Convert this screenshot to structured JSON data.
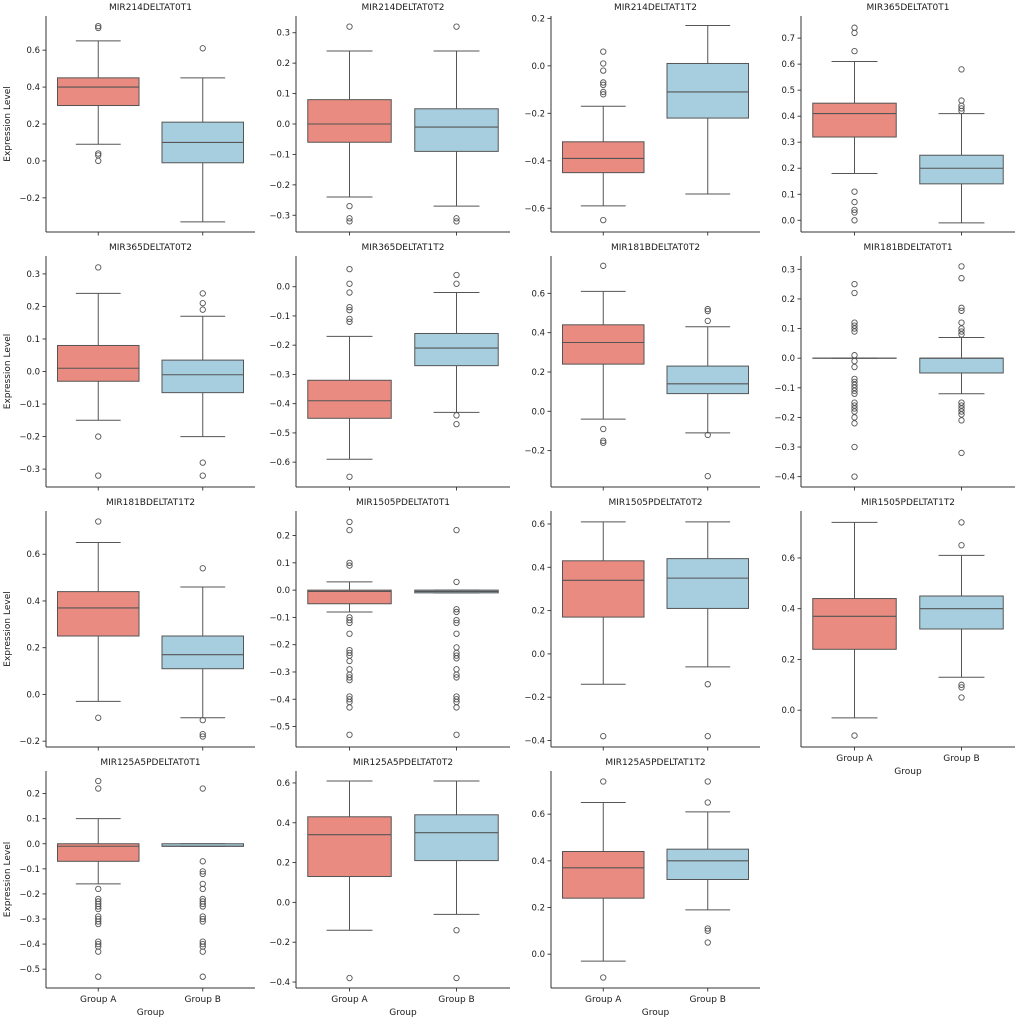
{
  "chart_data": {
    "type": "boxplot",
    "categories": [
      "Group A",
      "Group B"
    ],
    "ylabel": "Expression Level",
    "xlabel": "Group",
    "colors": {
      "group_a_fill": "#E98B80",
      "group_b_fill": "#A7CEDF",
      "box_line": "#555555",
      "spine": "#333333",
      "text": "#1A1A1A",
      "background": "#FFFFFF"
    },
    "plots": [
      {
        "title": "MIR214DELTAT0T1",
        "ylim": [
          -0.385,
          0.785
        ],
        "yticks": [
          -0.2,
          0.0,
          0.2,
          0.4,
          0.6
        ],
        "show_ylabel": true,
        "show_xticklabels": false,
        "boxes": [
          {
            "whislo": 0.09,
            "q1": 0.3,
            "med": 0.4,
            "q3": 0.45,
            "whishi": 0.65,
            "outliers": [
              0.73,
              0.72,
              0.04,
              0.03,
              0.0
            ]
          },
          {
            "whislo": -0.33,
            "q1": -0.01,
            "med": 0.1,
            "q3": 0.21,
            "whishi": 0.45,
            "outliers": [
              0.61
            ]
          }
        ]
      },
      {
        "title": "MIR214DELTAT0T2",
        "ylim": [
          -0.355,
          0.355
        ],
        "yticks": [
          -0.3,
          -0.2,
          -0.1,
          0.0,
          0.1,
          0.2,
          0.3
        ],
        "show_ylabel": false,
        "show_xticklabels": false,
        "boxes": [
          {
            "whislo": -0.24,
            "q1": -0.06,
            "med": 0.0,
            "q3": 0.08,
            "whishi": 0.24,
            "outliers": [
              0.32,
              -0.27,
              -0.31,
              -0.32
            ]
          },
          {
            "whislo": -0.27,
            "q1": -0.09,
            "med": -0.01,
            "q3": 0.05,
            "whishi": 0.24,
            "outliers": [
              0.32,
              -0.31,
              -0.32
            ]
          }
        ]
      },
      {
        "title": "MIR214DELTAT1T2",
        "ylim": [
          -0.7,
          0.21
        ],
        "yticks": [
          -0.6,
          -0.4,
          -0.2,
          0.0,
          0.2
        ],
        "show_ylabel": false,
        "show_xticklabels": false,
        "boxes": [
          {
            "whislo": -0.59,
            "q1": -0.45,
            "med": -0.39,
            "q3": -0.32,
            "whishi": -0.17,
            "outliers": [
              0.06,
              0.01,
              -0.02,
              -0.07,
              -0.08,
              -0.11,
              -0.12,
              -0.65
            ]
          },
          {
            "whislo": -0.54,
            "q1": -0.22,
            "med": -0.11,
            "q3": 0.01,
            "whishi": 0.17,
            "outliers": []
          }
        ]
      },
      {
        "title": "MIR365DELTAT0T1",
        "ylim": [
          -0.045,
          0.785
        ],
        "yticks": [
          0.0,
          0.1,
          0.2,
          0.3,
          0.4,
          0.5,
          0.6,
          0.7
        ],
        "show_ylabel": false,
        "show_xticklabels": false,
        "boxes": [
          {
            "whislo": 0.18,
            "q1": 0.32,
            "med": 0.41,
            "q3": 0.45,
            "whishi": 0.61,
            "outliers": [
              0.74,
              0.72,
              0.65,
              0.11,
              0.07,
              0.04,
              0.03,
              0.0
            ]
          },
          {
            "whislo": -0.01,
            "q1": 0.14,
            "med": 0.2,
            "q3": 0.25,
            "whishi": 0.41,
            "outliers": [
              0.58,
              0.46,
              0.44,
              0.43,
              0.42
            ]
          }
        ]
      },
      {
        "title": "MIR365DELTAT0T2",
        "ylim": [
          -0.355,
          0.355
        ],
        "yticks": [
          -0.3,
          -0.2,
          -0.1,
          0.0,
          0.1,
          0.2,
          0.3
        ],
        "show_ylabel": true,
        "show_xticklabels": false,
        "boxes": [
          {
            "whislo": -0.15,
            "q1": -0.03,
            "med": 0.01,
            "q3": 0.08,
            "whishi": 0.24,
            "outliers": [
              0.32,
              -0.2,
              -0.32
            ]
          },
          {
            "whislo": -0.2,
            "q1": -0.065,
            "med": -0.01,
            "q3": 0.035,
            "whishi": 0.17,
            "outliers": [
              0.24,
              0.21,
              0.19,
              -0.28,
              -0.32
            ]
          }
        ]
      },
      {
        "title": "MIR365DELTAT1T2",
        "ylim": [
          -0.685,
          0.105
        ],
        "yticks": [
          -0.6,
          -0.5,
          -0.4,
          -0.3,
          -0.2,
          -0.1,
          0.0
        ],
        "show_ylabel": false,
        "show_xticklabels": false,
        "boxes": [
          {
            "whislo": -0.59,
            "q1": -0.45,
            "med": -0.39,
            "q3": -0.32,
            "whishi": -0.17,
            "outliers": [
              0.06,
              0.01,
              -0.02,
              -0.07,
              -0.08,
              -0.11,
              -0.12,
              -0.65
            ]
          },
          {
            "whislo": -0.43,
            "q1": -0.27,
            "med": -0.21,
            "q3": -0.16,
            "whishi": -0.02,
            "outliers": [
              0.04,
              0.01,
              -0.44,
              -0.47
            ]
          }
        ]
      },
      {
        "title": "MIR181BDELTAT0T2",
        "ylim": [
          -0.385,
          0.79
        ],
        "yticks": [
          -0.2,
          0.0,
          0.2,
          0.4,
          0.6
        ],
        "show_ylabel": false,
        "show_xticklabels": false,
        "boxes": [
          {
            "whislo": -0.04,
            "q1": 0.24,
            "med": 0.35,
            "q3": 0.44,
            "whishi": 0.61,
            "outliers": [
              0.74,
              -0.09,
              -0.15,
              -0.16
            ]
          },
          {
            "whislo": -0.11,
            "q1": 0.09,
            "med": 0.14,
            "q3": 0.23,
            "whishi": 0.43,
            "outliers": [
              0.52,
              0.51,
              0.46,
              -0.12,
              -0.33
            ]
          }
        ]
      },
      {
        "title": "MIR181BDELTAT0T1",
        "ylim": [
          -0.435,
          0.345
        ],
        "yticks": [
          -0.4,
          -0.3,
          -0.2,
          -0.1,
          0.0,
          0.1,
          0.2,
          0.3
        ],
        "show_ylabel": false,
        "show_xticklabels": false,
        "boxes": [
          {
            "whislo": 0.0,
            "q1": 0.0,
            "med": 0.0,
            "q3": 0.0,
            "whishi": 0.0,
            "outliers": [
              0.25,
              0.22,
              0.12,
              0.11,
              0.1,
              0.09,
              0.01,
              -0.01,
              -0.03,
              -0.07,
              -0.08,
              -0.09,
              -0.1,
              -0.11,
              -0.12,
              -0.15,
              -0.16,
              -0.17,
              -0.18,
              -0.2,
              -0.22,
              -0.3,
              -0.4
            ]
          },
          {
            "whislo": -0.12,
            "q1": -0.05,
            "med": 0.0,
            "q3": 0.0,
            "whishi": 0.07,
            "outliers": [
              0.31,
              0.27,
              0.17,
              0.16,
              0.12,
              0.1,
              0.09,
              0.08,
              -0.15,
              -0.16,
              -0.17,
              -0.18,
              -0.19,
              -0.21,
              -0.32
            ]
          }
        ]
      },
      {
        "title": "MIR181BDELTAT1T2",
        "ylim": [
          -0.225,
          0.785
        ],
        "yticks": [
          -0.2,
          0.0,
          0.2,
          0.4,
          0.6
        ],
        "show_ylabel": true,
        "show_xticklabels": false,
        "boxes": [
          {
            "whislo": -0.03,
            "q1": 0.25,
            "med": 0.37,
            "q3": 0.44,
            "whishi": 0.65,
            "outliers": [
              0.74,
              -0.1
            ]
          },
          {
            "whislo": -0.1,
            "q1": 0.11,
            "med": 0.17,
            "q3": 0.25,
            "whishi": 0.46,
            "outliers": [
              0.54,
              -0.11,
              -0.17,
              -0.18
            ]
          }
        ]
      },
      {
        "title": "MIR1505PDELTAT0T1",
        "ylim": [
          -0.575,
          0.29
        ],
        "yticks": [
          -0.5,
          -0.4,
          -0.3,
          -0.2,
          -0.1,
          0.0,
          0.1,
          0.2
        ],
        "show_ylabel": false,
        "show_xticklabels": false,
        "boxes": [
          {
            "whislo": -0.08,
            "q1": -0.05,
            "med": -0.005,
            "q3": 0.0,
            "whishi": 0.03,
            "outliers": [
              0.25,
              0.22,
              0.1,
              0.09,
              -0.1,
              -0.11,
              -0.12,
              -0.16,
              -0.22,
              -0.23,
              -0.24,
              -0.26,
              -0.29,
              -0.31,
              -0.32,
              -0.33,
              -0.39,
              -0.4,
              -0.41,
              -0.43,
              -0.53
            ]
          },
          {
            "whislo": -0.01,
            "q1": -0.01,
            "med": -0.005,
            "q3": 0.0,
            "whishi": 0.0,
            "outliers": [
              0.22,
              0.03,
              -0.07,
              -0.08,
              -0.11,
              -0.12,
              -0.16,
              -0.21,
              -0.23,
              -0.24,
              -0.25,
              -0.29,
              -0.31,
              -0.32,
              -0.39,
              -0.4,
              -0.41,
              -0.43,
              -0.53
            ]
          }
        ]
      },
      {
        "title": "MIR1505PDELTAT0T2",
        "ylim": [
          -0.43,
          0.66
        ],
        "yticks": [
          -0.4,
          -0.2,
          0.0,
          0.2,
          0.4,
          0.6
        ],
        "show_ylabel": false,
        "show_xticklabels": false,
        "boxes": [
          {
            "whislo": -0.14,
            "q1": 0.17,
            "med": 0.34,
            "q3": 0.43,
            "whishi": 0.61,
            "outliers": [
              -0.38
            ]
          },
          {
            "whislo": -0.06,
            "q1": 0.21,
            "med": 0.35,
            "q3": 0.44,
            "whishi": 0.61,
            "outliers": [
              -0.14,
              -0.38
            ]
          }
        ]
      },
      {
        "title": "MIR1505PDELTAT1T2",
        "ylim": [
          -0.145,
          0.785
        ],
        "yticks": [
          0.0,
          0.2,
          0.4,
          0.6
        ],
        "show_ylabel": false,
        "show_xticklabels": true,
        "boxes": [
          {
            "whislo": -0.03,
            "q1": 0.24,
            "med": 0.37,
            "q3": 0.44,
            "whishi": 0.74,
            "outliers": [
              -0.1
            ]
          },
          {
            "whislo": 0.13,
            "q1": 0.32,
            "med": 0.4,
            "q3": 0.45,
            "whishi": 0.61,
            "outliers": [
              0.74,
              0.65,
              0.1,
              0.09,
              0.05
            ]
          }
        ]
      },
      {
        "title": "MIR125A5PDELTAT0T1",
        "ylim": [
          -0.575,
          0.29
        ],
        "yticks": [
          -0.5,
          -0.4,
          -0.3,
          -0.2,
          -0.1,
          0.0,
          0.1,
          0.2
        ],
        "show_ylabel": true,
        "show_xticklabels": true,
        "boxes": [
          {
            "whislo": -0.16,
            "q1": -0.07,
            "med": -0.01,
            "q3": 0.0,
            "whishi": 0.1,
            "outliers": [
              0.25,
              0.22,
              -0.18,
              -0.22,
              -0.23,
              -0.24,
              -0.25,
              -0.26,
              -0.29,
              -0.3,
              -0.31,
              -0.32,
              -0.39,
              -0.4,
              -0.41,
              -0.43,
              -0.53
            ]
          },
          {
            "whislo": -0.01,
            "q1": -0.01,
            "med": -0.01,
            "q3": 0.0,
            "whishi": 0.0,
            "outliers": [
              0.22,
              -0.07,
              -0.11,
              -0.12,
              -0.16,
              -0.18,
              -0.22,
              -0.23,
              -0.24,
              -0.25,
              -0.29,
              -0.3,
              -0.31,
              -0.39,
              -0.4,
              -0.41,
              -0.43,
              -0.53
            ]
          }
        ]
      },
      {
        "title": "MIR125A5PDELTAT0T2",
        "ylim": [
          -0.43,
          0.66
        ],
        "yticks": [
          -0.4,
          -0.2,
          0.0,
          0.2,
          0.4,
          0.6
        ],
        "show_ylabel": false,
        "show_xticklabels": true,
        "boxes": [
          {
            "whislo": -0.14,
            "q1": 0.13,
            "med": 0.34,
            "q3": 0.43,
            "whishi": 0.61,
            "outliers": [
              -0.38
            ]
          },
          {
            "whislo": -0.06,
            "q1": 0.21,
            "med": 0.35,
            "q3": 0.44,
            "whishi": 0.61,
            "outliers": [
              -0.14,
              -0.38
            ]
          }
        ]
      },
      {
        "title": "MIR125A5PDELTAT1T2",
        "ylim": [
          -0.145,
          0.785
        ],
        "yticks": [
          0.0,
          0.2,
          0.4,
          0.6
        ],
        "show_ylabel": false,
        "show_xticklabels": true,
        "boxes": [
          {
            "whislo": -0.03,
            "q1": 0.24,
            "med": 0.37,
            "q3": 0.44,
            "whishi": 0.65,
            "outliers": [
              0.74,
              -0.1
            ]
          },
          {
            "whislo": 0.19,
            "q1": 0.32,
            "med": 0.4,
            "q3": 0.45,
            "whishi": 0.61,
            "outliers": [
              0.74,
              0.65,
              0.11,
              0.1,
              0.05
            ]
          }
        ]
      }
    ]
  }
}
